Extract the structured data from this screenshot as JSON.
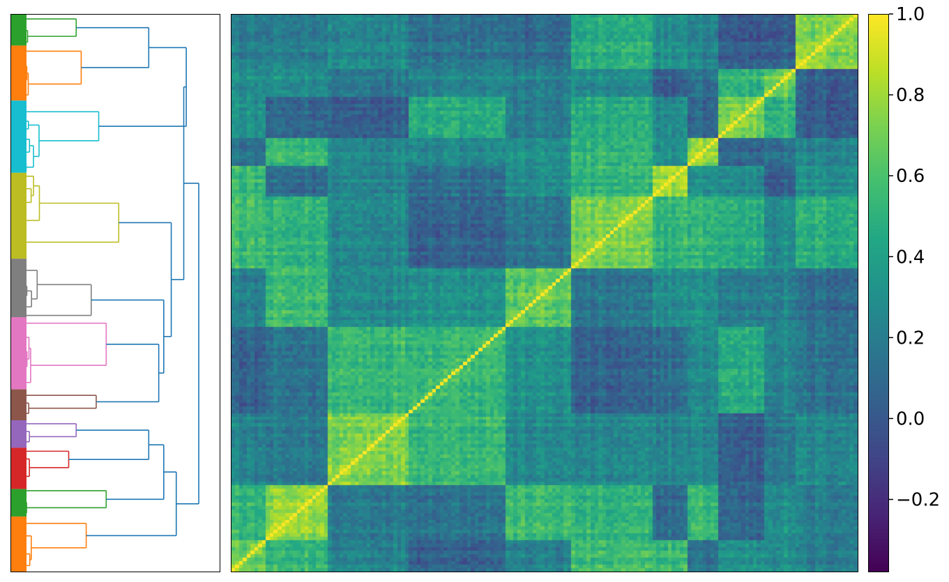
{
  "chart_data": [
    {
      "type": "dendrogram",
      "orientation": "left",
      "leaf_clusters": [
        {
          "color": "#2ca02c",
          "size": 9
        },
        {
          "color": "#ff7f0e",
          "size": 16
        },
        {
          "color": "#17becf",
          "size": 21
        },
        {
          "color": "#bcbd22",
          "size": 25
        },
        {
          "color": "#7f7f7f",
          "size": 17
        },
        {
          "color": "#e377c2",
          "size": 21
        },
        {
          "color": "#8c564b",
          "size": 9
        },
        {
          "color": "#9467bd",
          "size": 8
        },
        {
          "color": "#d62728",
          "size": 12
        },
        {
          "color": "#2ca02c",
          "size": 8
        },
        {
          "color": "#ff7f0e",
          "size": 16
        }
      ],
      "link_color": "#1f77b4",
      "grid": false,
      "ticks": false
    },
    {
      "type": "heatmap",
      "description": "clustered correlation matrix",
      "n": 162,
      "colormap": "viridis",
      "vmin": -0.38,
      "vmax": 1.0,
      "diagonal": 1.0,
      "block_sizes": [
        9,
        16,
        21,
        25,
        17,
        21,
        9,
        8,
        12,
        8,
        16
      ],
      "block_within_corr": [
        0.62,
        0.75,
        0.72,
        0.55,
        0.62,
        0.68,
        0.78,
        0.74,
        0.7,
        0.65,
        0.72
      ],
      "grid": false,
      "ticks": false
    },
    {
      "type": "colorbar",
      "colormap": "viridis",
      "vmin": -0.38,
      "vmax": 1.0,
      "tick_values": [
        1.0,
        0.8,
        0.6,
        0.4,
        0.2,
        0.0,
        -0.2
      ],
      "tick_labels": [
        "1.0",
        "0.8",
        "0.6",
        "0.4",
        "0.2",
        "0.0",
        "−0.2"
      ]
    }
  ]
}
